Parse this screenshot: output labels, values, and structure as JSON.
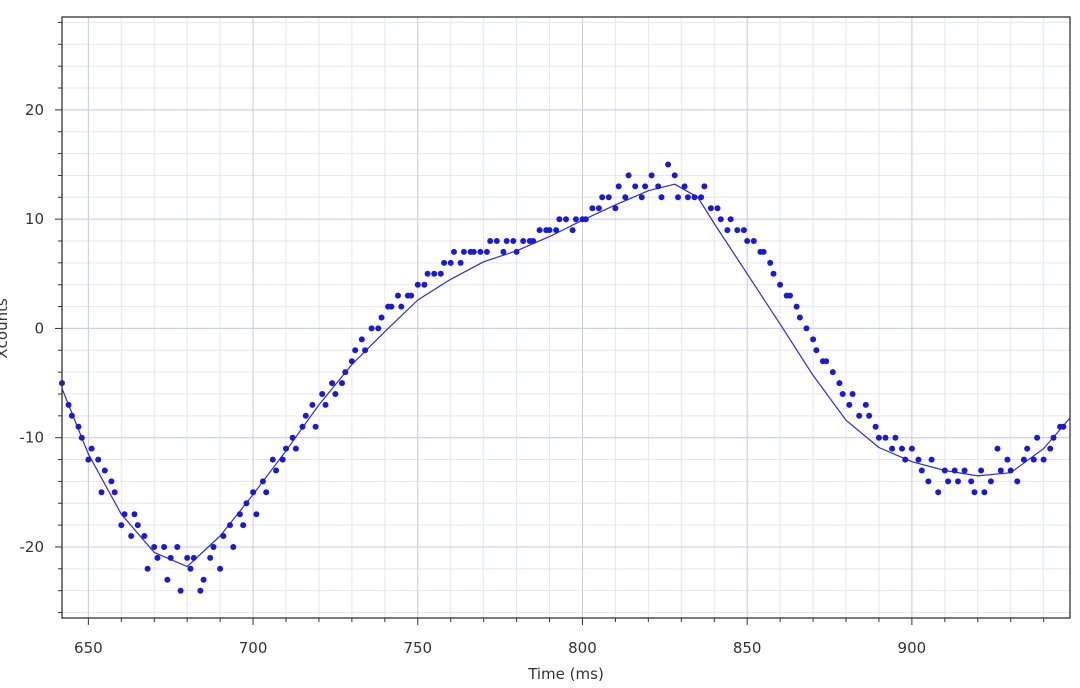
{
  "chart_data": {
    "type": "scatter",
    "xlabel": "Time (ms)",
    "ylabel": "Xcounts",
    "xlim": [
      642,
      948
    ],
    "ylim": [
      -26.5,
      28.5
    ],
    "x_ticks": [
      650,
      700,
      750,
      800,
      850,
      900
    ],
    "y_ticks": [
      20,
      10,
      0,
      -10,
      -20
    ],
    "x_minor_step": 10,
    "y_minor_step": 2,
    "grid": true,
    "legend": "none",
    "colors": {
      "points": "#1a1ad6",
      "trend_line": "#2b2bd6",
      "major_grid": "#c9cbe3",
      "minor_grid": "#e4e6f1",
      "frame": "#333333"
    },
    "series": [
      {
        "kind": "points",
        "x": [
          642,
          644,
          645,
          647,
          648,
          650,
          651,
          653,
          654,
          655,
          657,
          658,
          660,
          661,
          663,
          664,
          665,
          667,
          668,
          670,
          671,
          673,
          674,
          675,
          677,
          678,
          680,
          681,
          682,
          684,
          685,
          687,
          688,
          690,
          691,
          693,
          694,
          696,
          697,
          698,
          700,
          701,
          703,
          704,
          706,
          707,
          709,
          710,
          712,
          713,
          715,
          716,
          718,
          719,
          721,
          722,
          724,
          725,
          727,
          728,
          730,
          731,
          733,
          734,
          736,
          738,
          739,
          741,
          742,
          744,
          745,
          747,
          748,
          750,
          752,
          753,
          755,
          757,
          758,
          760,
          761,
          763,
          764,
          766,
          767,
          769,
          771,
          772,
          774,
          776,
          777,
          779,
          780,
          782,
          784,
          785,
          787,
          789,
          790,
          792,
          793,
          795,
          797,
          798,
          800,
          801,
          803,
          805,
          806,
          808,
          810,
          811,
          813,
          814,
          816,
          818,
          819,
          821,
          823,
          824,
          826,
          828,
          829,
          831,
          832,
          834,
          836,
          837,
          839,
          841,
          842,
          844,
          845,
          847,
          849,
          850,
          852,
          854,
          855,
          857,
          858,
          860,
          862,
          863,
          865,
          866,
          868,
          870,
          871,
          873,
          874,
          876,
          878,
          879,
          881,
          882,
          884,
          886,
          887,
          889,
          890,
          892,
          894,
          895,
          897,
          898,
          900,
          902,
          903,
          905,
          906,
          908,
          910,
          911,
          913,
          914,
          916,
          918,
          919,
          921,
          922,
          924,
          926,
          927,
          929,
          930,
          932,
          934,
          935,
          937,
          938,
          940,
          942,
          943,
          945,
          946
        ],
        "y": [
          -5,
          -7,
          -8,
          -9,
          -10,
          -12,
          -11,
          -12,
          -15,
          -13,
          -14,
          -15,
          -18,
          -17,
          -19,
          -17,
          -18,
          -19,
          -22,
          -20,
          -21,
          -20,
          -23,
          -21,
          -20,
          -24,
          -21,
          -22,
          -21,
          -24,
          -23,
          -21,
          -20,
          -22,
          -19,
          -18,
          -20,
          -17,
          -18,
          -16,
          -15,
          -17,
          -14,
          -15,
          -12,
          -13,
          -12,
          -11,
          -10,
          -11,
          -9,
          -8,
          -7,
          -9,
          -6,
          -7,
          -5,
          -6,
          -5,
          -4,
          -3,
          -2,
          -1,
          -2,
          0,
          0,
          1,
          2,
          2,
          3,
          2,
          3,
          3,
          4,
          4,
          5,
          5,
          5,
          6,
          6,
          7,
          6,
          7,
          7,
          7,
          7,
          7,
          8,
          8,
          7,
          8,
          8,
          7,
          8,
          8,
          8,
          9,
          9,
          9,
          9,
          10,
          10,
          9,
          10,
          10,
          10,
          11,
          11,
          12,
          12,
          11,
          13,
          12,
          14,
          13,
          12,
          13,
          14,
          13,
          12,
          15,
          14,
          12,
          13,
          12,
          12,
          12,
          13,
          11,
          11,
          10,
          9,
          10,
          9,
          9,
          8,
          8,
          7,
          7,
          6,
          5,
          4,
          3,
          3,
          2,
          1,
          0,
          -1,
          -2,
          -3,
          -3,
          -4,
          -5,
          -6,
          -7,
          -6,
          -8,
          -7,
          -8,
          -9,
          -10,
          -10,
          -11,
          -10,
          -11,
          -12,
          -11,
          -12,
          -13,
          -14,
          -12,
          -15,
          -13,
          -14,
          -13,
          -14,
          -13,
          -14,
          -15,
          -13,
          -15,
          -14,
          -11,
          -13,
          -12,
          -13,
          -14,
          -12,
          -11,
          -12,
          -10,
          -12,
          -11,
          -10,
          -9,
          -9
        ]
      },
      {
        "kind": "line",
        "x": [
          642,
          650,
          660,
          670,
          680,
          690,
          700,
          710,
          720,
          730,
          740,
          750,
          760,
          770,
          780,
          790,
          800,
          810,
          820,
          828,
          835,
          840,
          850,
          860,
          870,
          880,
          890,
          900,
          910,
          920,
          930,
          940,
          948
        ],
        "y": [
          -5.5,
          -11.5,
          -17,
          -20.5,
          -21.8,
          -19,
          -15.2,
          -11.2,
          -7,
          -3.3,
          -0.3,
          2.6,
          4.5,
          6.1,
          7.1,
          8.4,
          9.9,
          11.3,
          12.6,
          13.2,
          12,
          9.6,
          5,
          0.4,
          -4.3,
          -8.4,
          -10.9,
          -12.2,
          -13,
          -13.5,
          -13.2,
          -11,
          -8.2
        ]
      }
    ]
  }
}
